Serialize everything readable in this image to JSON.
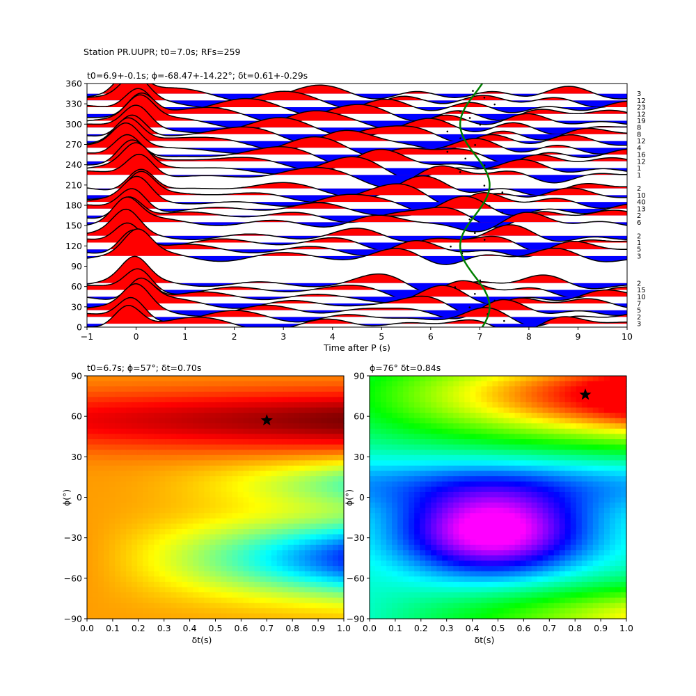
{
  "figure": {
    "suptitle": "Station PR.UUPR; t0=7.0s; RFs=259"
  },
  "chart_data": [
    {
      "type": "line",
      "panel": "receiver-function-gather",
      "title": "t0=6.9+-0.1s; ϕ=-68.47+-14.22°; δt=0.61+-0.29s",
      "xlabel": "Time after P (s)",
      "ylabel": "",
      "xlim": [
        -1,
        10
      ],
      "ylim": [
        0,
        360
      ],
      "x_ticks": [
        -1,
        0,
        1,
        2,
        3,
        4,
        5,
        6,
        7,
        8,
        9,
        10
      ],
      "y_ticks": [
        0,
        30,
        60,
        90,
        120,
        150,
        180,
        210,
        240,
        270,
        300,
        330,
        360
      ],
      "positive_fill": "#ff0000",
      "negative_fill": "#0000ff",
      "trace_color": "#000000",
      "fit_curve_color": "#008000",
      "traces": [
        {
          "baz": 345,
          "count": 3
        },
        {
          "baz": 335,
          "count": 12
        },
        {
          "baz": 325,
          "count": 23
        },
        {
          "baz": 315,
          "count": 12
        },
        {
          "baz": 305,
          "count": 19
        },
        {
          "baz": 295,
          "count": 8
        },
        {
          "baz": 285,
          "count": 8
        },
        {
          "baz": 275,
          "count": 12
        },
        {
          "baz": 265,
          "count": 4
        },
        {
          "baz": 255,
          "count": 16
        },
        {
          "baz": 245,
          "count": 12
        },
        {
          "baz": 235,
          "count": 1
        },
        {
          "baz": 225,
          "count": 1
        },
        {
          "baz": 205,
          "count": 2
        },
        {
          "baz": 195,
          "count": 10
        },
        {
          "baz": 185,
          "count": 40
        },
        {
          "baz": 175,
          "count": 13
        },
        {
          "baz": 165,
          "count": 2
        },
        {
          "baz": 155,
          "count": 6
        },
        {
          "baz": 135,
          "count": 2
        },
        {
          "baz": 125,
          "count": 1
        },
        {
          "baz": 115,
          "count": 5
        },
        {
          "baz": 105,
          "count": 3
        },
        {
          "baz": 65,
          "count": 2
        },
        {
          "baz": 55,
          "count": 15
        },
        {
          "baz": 45,
          "count": 10
        },
        {
          "baz": 35,
          "count": 7
        },
        {
          "baz": 25,
          "count": 5
        },
        {
          "baz": 15,
          "count": 2
        },
        {
          "baz": 5,
          "count": 3
        }
      ],
      "fit_curve": {
        "center_s": 6.9,
        "amplitude_s": 0.3,
        "period_deg": 180
      }
    },
    {
      "type": "heatmap",
      "panel": "grid-search-left",
      "title": "t0=6.7s; ϕ=57°; δt=0.70s",
      "xlabel": "δt(s)",
      "ylabel": "ϕ(°)",
      "xlim": [
        0.0,
        1.0
      ],
      "ylim": [
        -90,
        90
      ],
      "x_ticks": [
        "0.0",
        "0.1",
        "0.2",
        "0.3",
        "0.4",
        "0.5",
        "0.6",
        "0.7",
        "0.8",
        "0.9",
        "1.0"
      ],
      "y_ticks": [
        -90,
        -60,
        -30,
        0,
        30,
        60,
        90
      ],
      "colormap": "jet",
      "best": {
        "dt": 0.7,
        "phi": 57
      }
    },
    {
      "type": "heatmap",
      "panel": "grid-search-right",
      "title": "ϕ=76° δt=0.84s",
      "xlabel": "δt(s)",
      "ylabel": "ϕ(°)",
      "xlim": [
        0.0,
        1.0
      ],
      "ylim": [
        -90,
        90
      ],
      "x_ticks": [
        "0.0",
        "0.1",
        "0.2",
        "0.3",
        "0.4",
        "0.5",
        "0.6",
        "0.7",
        "0.8",
        "0.9",
        "1.0"
      ],
      "y_ticks": [
        -90,
        -60,
        -30,
        0,
        30,
        60,
        90
      ],
      "colormap": "gist_rainbow",
      "best": {
        "dt": 0.84,
        "phi": 76
      }
    }
  ]
}
